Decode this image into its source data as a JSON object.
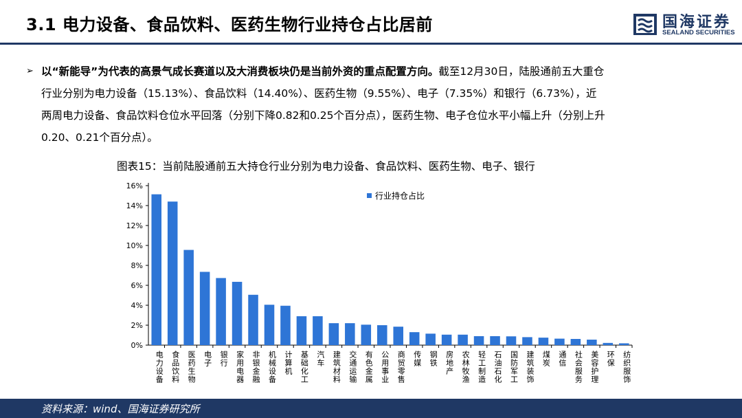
{
  "header": {
    "title": "3.1 电力设备、食品饮料、医药生物行业持仓占比居前",
    "logo_cn": "国海证券",
    "logo_en": "SEALAND SECURITIES"
  },
  "bullet": {
    "bold": "以“新能导”为代表的高景气成长赛道以及大消费板块仍是当前外资的重点配置方向。",
    "lines": [
      "截至12月30日，陆股通前五大重仓",
      "行业分别为电力设备（15.13%）、食品饮料（14.40%）、医药生物（9.55%）、电子（7.35%）和银行（6.73%），近",
      "两周电力设备、食品饮料仓位水平回落（分别下降0.82和0.25个百分点），医药生物、电子仓位水平小幅上升（分别上升",
      "0.20、0.21个百分点）。"
    ]
  },
  "figure": {
    "caption": "图表15：当前陆股通前五大持仓行业分别为电力设备、食品饮料、医药生物、电子、银行"
  },
  "footer": {
    "source": "资料来源：wind、国海证券研究所"
  },
  "colors": {
    "bar": "#2E75D6",
    "brand": "#1F3864"
  },
  "chart_data": {
    "type": "bar",
    "categories": [
      "电力设备",
      "食品饮料",
      "医药生物",
      "电子",
      "银行",
      "家用电器",
      "非银金融",
      "机械设备",
      "计算机",
      "基础化工",
      "汽车",
      "建筑材料",
      "交通运输",
      "有色金属",
      "公用事业",
      "商贸零售",
      "传媒",
      "钢铁",
      "房地产",
      "农林牧渔",
      "轻工制造",
      "石油石化",
      "国防军工",
      "建筑装饰",
      "煤炭",
      "通信",
      "社会服务",
      "美容护理",
      "环保",
      "纺织服饰"
    ],
    "series": [
      {
        "name": "行业持仓占比",
        "values": [
          15.13,
          14.4,
          9.55,
          7.35,
          6.73,
          6.35,
          5.05,
          4.05,
          3.95,
          2.9,
          2.9,
          2.2,
          2.2,
          2.05,
          2.0,
          1.85,
          1.3,
          1.15,
          1.05,
          1.05,
          0.9,
          0.9,
          0.88,
          0.8,
          0.75,
          0.65,
          0.62,
          0.55,
          0.22,
          0.18
        ]
      }
    ],
    "yticks": [
      "0%",
      "2%",
      "4%",
      "6%",
      "8%",
      "10%",
      "12%",
      "14%",
      "16%"
    ],
    "ylim": [
      0,
      16
    ],
    "grid": false,
    "legend_position": "top-left"
  }
}
